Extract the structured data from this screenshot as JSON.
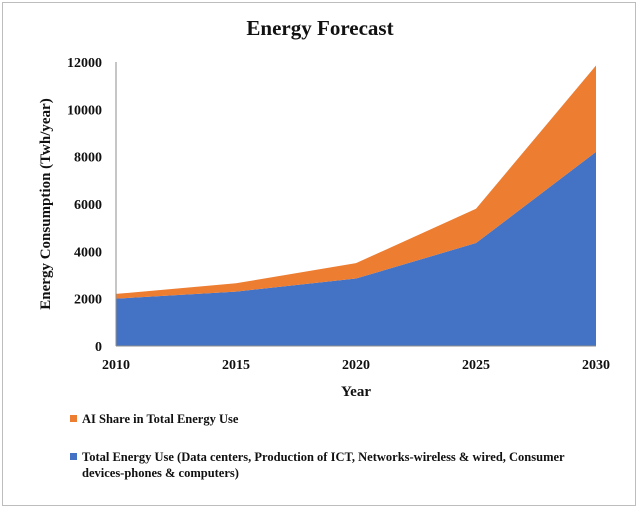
{
  "chart_data": {
    "type": "area",
    "title": "Energy Forecast",
    "xlabel": "Year",
    "ylabel": "Energy Consumption (Twh/year)",
    "x": [
      2010,
      2015,
      2020,
      2025,
      2030
    ],
    "xlim": [
      2010,
      2030
    ],
    "ylim": [
      0,
      12000
    ],
    "yticks": [
      0,
      2000,
      4000,
      6000,
      8000,
      10000,
      12000
    ],
    "stacked": true,
    "grid": false,
    "legend_position": "bottom",
    "series": [
      {
        "name": "Total Energy Use (Data centers, Production of ICT, Networks-wireless & wired, Consumer devices-phones & computers)",
        "values": [
          2000,
          2300,
          2850,
          4350,
          8200
        ],
        "color": "#4472C4"
      },
      {
        "name": "AI Share in Total Energy Use",
        "values": [
          200,
          350,
          650,
          1450,
          3650
        ],
        "color": "#ED7D31"
      }
    ]
  }
}
